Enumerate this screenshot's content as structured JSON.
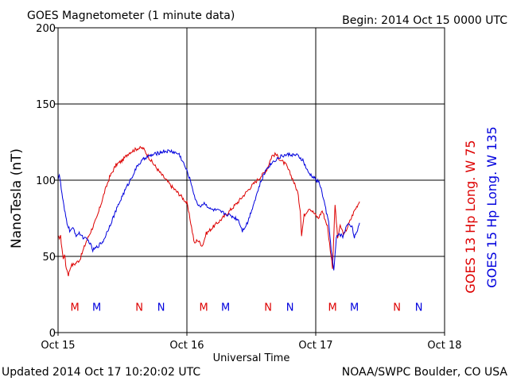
{
  "colors": {
    "primary": "#dd0000",
    "secondary": "#0000dd",
    "axes": "#000000",
    "background": "#ffffff"
  },
  "chart_data": {
    "type": "line",
    "title": "GOES Magnetometer (1 minute data)",
    "begin_label": "Begin:  2014 Oct 15 0000 UTC",
    "ylabel": "NanoTesla (nT)",
    "xlabel": "Universal Time",
    "ylim": [
      0,
      200
    ],
    "y_ticks": [
      0,
      50,
      100,
      150,
      200
    ],
    "xlim_days": [
      0,
      3
    ],
    "x_ticks": [
      {
        "day": 0,
        "label": "Oct 15"
      },
      {
        "day": 1,
        "label": "Oct 16"
      },
      {
        "day": 2,
        "label": "Oct 17"
      },
      {
        "day": 3,
        "label": "Oct 18"
      }
    ],
    "grid": true,
    "legend_position": "right, rotated vertical",
    "series": [
      {
        "name": "GOES 13 Hp  Long. W 75",
        "color": "#dd0000",
        "points": [
          [
            0.0,
            62
          ],
          [
            0.02,
            63
          ],
          [
            0.04,
            48
          ],
          [
            0.05,
            52
          ],
          [
            0.06,
            44
          ],
          [
            0.08,
            38
          ],
          [
            0.1,
            44
          ],
          [
            0.13,
            45
          ],
          [
            0.17,
            48
          ],
          [
            0.22,
            60
          ],
          [
            0.3,
            75
          ],
          [
            0.36,
            92
          ],
          [
            0.4,
            102
          ],
          [
            0.45,
            110
          ],
          [
            0.5,
            113
          ],
          [
            0.55,
            118
          ],
          [
            0.62,
            121
          ],
          [
            0.66,
            121
          ],
          [
            0.72,
            113
          ],
          [
            0.8,
            104
          ],
          [
            0.88,
            96
          ],
          [
            0.95,
            90
          ],
          [
            1.0,
            85
          ],
          [
            1.03,
            72
          ],
          [
            1.06,
            58
          ],
          [
            1.08,
            61
          ],
          [
            1.12,
            57
          ],
          [
            1.15,
            65
          ],
          [
            1.2,
            69
          ],
          [
            1.3,
            77
          ],
          [
            1.4,
            86
          ],
          [
            1.5,
            96
          ],
          [
            1.58,
            103
          ],
          [
            1.62,
            107
          ],
          [
            1.66,
            116
          ],
          [
            1.69,
            117
          ],
          [
            1.73,
            113
          ],
          [
            1.77,
            110
          ],
          [
            1.82,
            101
          ],
          [
            1.86,
            92
          ],
          [
            1.88,
            80
          ],
          [
            1.89,
            64
          ],
          [
            1.91,
            77
          ],
          [
            1.95,
            82
          ],
          [
            1.99,
            78
          ],
          [
            2.02,
            75
          ],
          [
            2.05,
            80
          ],
          [
            2.09,
            70
          ],
          [
            2.13,
            43
          ],
          [
            2.15,
            84
          ],
          [
            2.17,
            62
          ],
          [
            2.19,
            70
          ],
          [
            2.22,
            64
          ],
          [
            2.26,
            72
          ],
          [
            2.3,
            80
          ],
          [
            2.34,
            86
          ]
        ]
      },
      {
        "name": "GOES 15 Hp  Long. W 135",
        "color": "#0000dd",
        "points": [
          [
            0.0,
            101
          ],
          [
            0.01,
            104
          ],
          [
            0.03,
            91
          ],
          [
            0.05,
            80
          ],
          [
            0.07,
            72
          ],
          [
            0.09,
            67
          ],
          [
            0.12,
            68
          ],
          [
            0.14,
            64
          ],
          [
            0.17,
            65
          ],
          [
            0.2,
            62
          ],
          [
            0.24,
            60
          ],
          [
            0.27,
            54
          ],
          [
            0.3,
            56
          ],
          [
            0.35,
            60
          ],
          [
            0.4,
            70
          ],
          [
            0.45,
            80
          ],
          [
            0.5,
            90
          ],
          [
            0.56,
            100
          ],
          [
            0.62,
            110
          ],
          [
            0.68,
            115
          ],
          [
            0.75,
            117
          ],
          [
            0.82,
            119
          ],
          [
            0.88,
            119
          ],
          [
            0.94,
            117
          ],
          [
            0.98,
            110
          ],
          [
            1.01,
            104
          ],
          [
            1.04,
            96
          ],
          [
            1.07,
            86
          ],
          [
            1.1,
            83
          ],
          [
            1.14,
            85
          ],
          [
            1.18,
            81
          ],
          [
            1.24,
            80
          ],
          [
            1.3,
            78
          ],
          [
            1.36,
            76
          ],
          [
            1.4,
            74
          ],
          [
            1.43,
            67
          ],
          [
            1.47,
            72
          ],
          [
            1.52,
            85
          ],
          [
            1.57,
            98
          ],
          [
            1.62,
            108
          ],
          [
            1.68,
            113
          ],
          [
            1.74,
            116
          ],
          [
            1.8,
            117
          ],
          [
            1.86,
            116
          ],
          [
            1.9,
            113
          ],
          [
            1.94,
            105
          ],
          [
            1.98,
            102
          ],
          [
            2.03,
            98
          ],
          [
            2.06,
            88
          ],
          [
            2.1,
            72
          ],
          [
            2.12,
            55
          ],
          [
            2.14,
            40
          ],
          [
            2.16,
            62
          ],
          [
            2.18,
            65
          ],
          [
            2.21,
            63
          ],
          [
            2.25,
            72
          ],
          [
            2.28,
            70
          ],
          [
            2.3,
            63
          ],
          [
            2.32,
            65
          ],
          [
            2.34,
            72
          ]
        ]
      }
    ],
    "annotations": [
      {
        "day": 0.13,
        "text": "M",
        "series": 0
      },
      {
        "day": 0.3,
        "text": "M",
        "series": 1
      },
      {
        "day": 0.63,
        "text": "N",
        "series": 0
      },
      {
        "day": 0.8,
        "text": "N",
        "series": 1
      },
      {
        "day": 1.13,
        "text": "M",
        "series": 0
      },
      {
        "day": 1.3,
        "text": "M",
        "series": 1
      },
      {
        "day": 1.63,
        "text": "N",
        "series": 0
      },
      {
        "day": 1.8,
        "text": "N",
        "series": 1
      },
      {
        "day": 2.13,
        "text": "M",
        "series": 0
      },
      {
        "day": 2.3,
        "text": "M",
        "series": 1
      },
      {
        "day": 2.63,
        "text": "N",
        "series": 0
      },
      {
        "day": 2.8,
        "text": "N",
        "series": 1
      }
    ],
    "annotation_value": 17
  },
  "footer": {
    "updated": "Updated 2014 Oct 17 10:20:02 UTC",
    "credit": "NOAA/SWPC Boulder, CO USA"
  }
}
